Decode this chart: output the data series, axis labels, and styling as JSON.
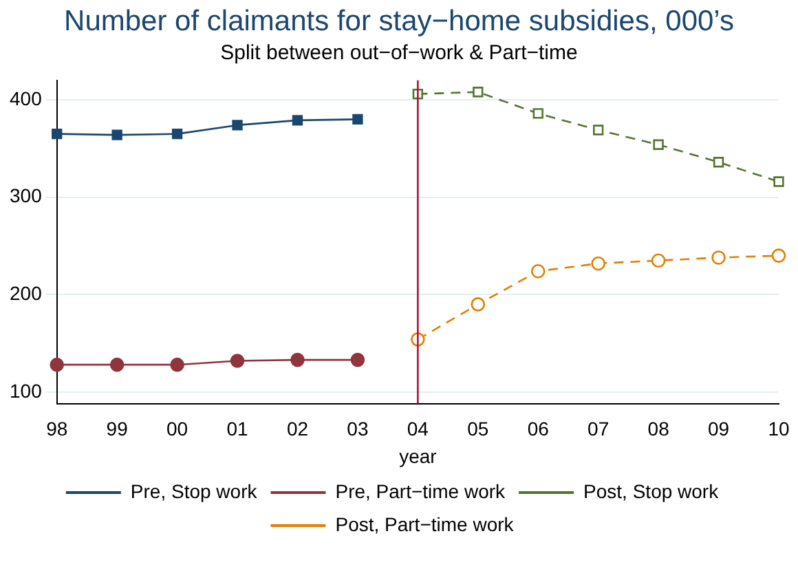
{
  "chart_data": {
    "type": "line",
    "title": "Number of claimants for stay−home subsidies, 000’s",
    "subtitle": "Split between out−of−work & Part−time",
    "xlabel": "year",
    "categories": [
      "98",
      "99",
      "00",
      "01",
      "02",
      "03",
      "04",
      "05",
      "06",
      "07",
      "08",
      "09",
      "10"
    ],
    "series": [
      {
        "name": "Pre, Stop work",
        "color": "#1a476f",
        "marker": "square",
        "line_style": "solid",
        "values": [
          365,
          364,
          365,
          374,
          379,
          380,
          null,
          null,
          null,
          null,
          null,
          null,
          null
        ]
      },
      {
        "name": "Pre, Part−time work",
        "color": "#90353b",
        "marker": "circle",
        "line_style": "solid",
        "values": [
          128,
          128,
          128,
          132,
          133,
          133,
          null,
          null,
          null,
          null,
          null,
          null,
          null
        ]
      },
      {
        "name": "Post, Stop work",
        "color": "#55752f",
        "marker": "square",
        "line_style": "dashed",
        "values": [
          null,
          null,
          null,
          null,
          null,
          null,
          406,
          408,
          386,
          369,
          354,
          336,
          316
        ]
      },
      {
        "name": "Post, Part−time work",
        "color": "#e37e00",
        "marker": "circle",
        "line_style": "dashed",
        "values": [
          null,
          null,
          null,
          null,
          null,
          null,
          154,
          190,
          224,
          232,
          235,
          238,
          240
        ]
      }
    ],
    "ylim": [
      88,
      420
    ],
    "yticks": [
      100,
      200,
      300,
      400
    ],
    "grid": "y",
    "legend": "bottom",
    "ref_lines": [
      {
        "axis": "x",
        "value": "04",
        "color": "#b0103a"
      }
    ]
  }
}
